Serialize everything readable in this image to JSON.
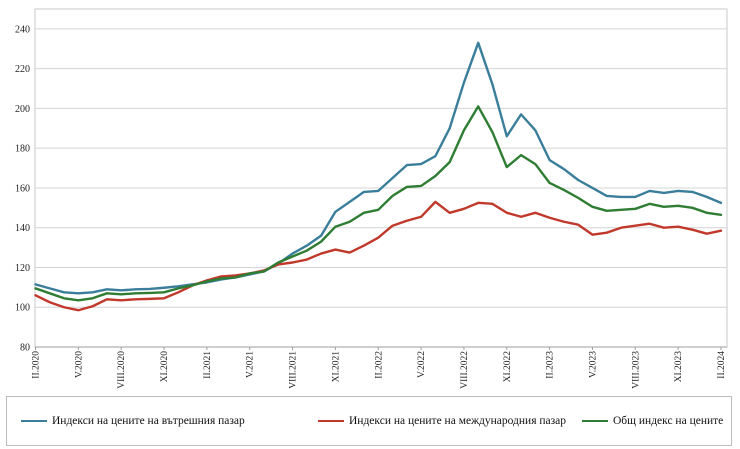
{
  "chart_data": {
    "type": "line",
    "title": "",
    "xlabel": "",
    "ylabel": "",
    "ylim": [
      80,
      250
    ],
    "yticks": [
      80,
      100,
      120,
      140,
      160,
      180,
      200,
      220,
      240
    ],
    "grid": "horizontal",
    "x_tick_labels": [
      {
        "index": 0,
        "label": "II.2020"
      },
      {
        "index": 3,
        "label": "V.2020"
      },
      {
        "index": 6,
        "label": "VIII.2020"
      },
      {
        "index": 9,
        "label": "XI.2020"
      },
      {
        "index": 12,
        "label": "II.2021"
      },
      {
        "index": 15,
        "label": "V.2021"
      },
      {
        "index": 18,
        "label": "VIII.2021"
      },
      {
        "index": 21,
        "label": "XI.2021"
      },
      {
        "index": 24,
        "label": "II.2022"
      },
      {
        "index": 27,
        "label": "V.2022"
      },
      {
        "index": 30,
        "label": "VIII.2022"
      },
      {
        "index": 33,
        "label": "XI.2022"
      },
      {
        "index": 36,
        "label": "II.2023"
      },
      {
        "index": 39,
        "label": "V.2023"
      },
      {
        "index": 42,
        "label": "VIII.2023"
      },
      {
        "index": 45,
        "label": "XI.2023"
      },
      {
        "index": 48,
        "label": "II.2024"
      }
    ],
    "legend_position": "bottom",
    "series": [
      {
        "name": "Индекси на цените на вътрешния пазар",
        "color": "#3a7e9b",
        "values": [
          111.5,
          109.5,
          107.5,
          107,
          107.5,
          109,
          108.5,
          109,
          109.2,
          109.8,
          110.5,
          111.5,
          112.5,
          114,
          115,
          116.5,
          118,
          122,
          127,
          131,
          136,
          148,
          153,
          158,
          158.5,
          165,
          171.5,
          172,
          176,
          190,
          213,
          233,
          212,
          186,
          197,
          189,
          174,
          169.5,
          164,
          160,
          156,
          155.5,
          155.5,
          158.5,
          157.5,
          158.5,
          158,
          155.5,
          152.5
        ]
      },
      {
        "name": "Индекси на цените на международния пазар",
        "color": "#c0392b",
        "values": [
          106,
          102.5,
          100,
          98.5,
          100.5,
          104,
          103.5,
          104,
          104.2,
          104.5,
          107.5,
          111,
          113.5,
          115.5,
          116,
          117,
          118.5,
          121.5,
          122.5,
          124,
          127,
          129,
          127.5,
          131,
          135,
          141,
          143.5,
          145.5,
          153,
          147.5,
          149.5,
          152.5,
          152,
          147.5,
          145.5,
          147.5,
          145,
          143,
          141.5,
          136.5,
          137.5,
          140,
          141,
          142,
          140,
          140.5,
          139,
          137,
          138.5
        ]
      },
      {
        "name": "Общ индекс на цените",
        "color": "#2e7d32",
        "values": [
          109.5,
          107,
          104.5,
          103.5,
          104.5,
          107,
          106.5,
          107,
          107.2,
          107.5,
          109.5,
          111,
          113,
          114.5,
          115,
          117,
          118,
          122.5,
          125.5,
          128.5,
          133,
          140.5,
          143,
          147.5,
          149,
          156,
          160.5,
          161,
          166,
          173,
          189,
          201,
          188,
          170.5,
          176.5,
          172,
          162.5,
          159,
          155,
          150.5,
          148.5,
          149,
          149.5,
          152,
          150.5,
          151,
          150,
          147.5,
          146.5
        ]
      }
    ]
  }
}
